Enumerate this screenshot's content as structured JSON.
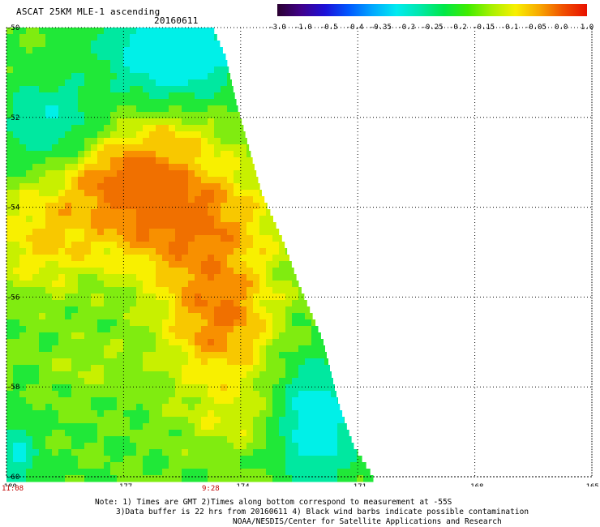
{
  "header": {
    "title": "ASCAT 25KM MLE-1 ascending",
    "date": "20160611"
  },
  "colorbar": {
    "tick_labels": [
      "-3.0",
      "-1.0",
      "-0.5",
      "-0.4",
      "-0.35",
      "-0.3",
      "-0.25",
      "-0.2",
      "-0.15",
      "-0.1",
      "-0.05",
      "0.0",
      "1.0"
    ],
    "colors": [
      "#2a0030",
      "#40008a",
      "#1c10d8",
      "#0058ff",
      "#00a8ff",
      "#00eaf0",
      "#00e8a8",
      "#00e848",
      "#40ec00",
      "#a8f000",
      "#f8f000",
      "#f8a800",
      "#f05000",
      "#e81000"
    ]
  },
  "axes": {
    "x_tick_labels": [
      "-180",
      "-177",
      "-174",
      "-171",
      "-168",
      "-165"
    ],
    "y_tick_labels": [
      "-50",
      "-52",
      "-54",
      "-56",
      "-58",
      "-60"
    ],
    "time_labels": [
      "11:08",
      "9:28"
    ]
  },
  "notes": {
    "line1": "Note: 1) Times are GMT 2)Times along bottom correspond to measurement at -55S",
    "line2": "3)Data buffer is 22 hrs from 20160611 4) Black wind barbs indicate possible contamination",
    "line3": "NOAA/NESDIS/Center for Satellite Applications and Research"
  },
  "map_data": {
    "lon_range": [
      -180,
      -165
    ],
    "lat_range": [
      -60,
      -50
    ],
    "field_colors": {
      "cyan": "#00f0e8",
      "teal": "#00e8a0",
      "green": "#20e838",
      "lime": "#80ec10",
      "yellowgreen": "#c8f000",
      "yellow": "#f8f000",
      "orange_yellow": "#f8c800",
      "orange": "#f89000",
      "deep_orange": "#f07000"
    }
  }
}
